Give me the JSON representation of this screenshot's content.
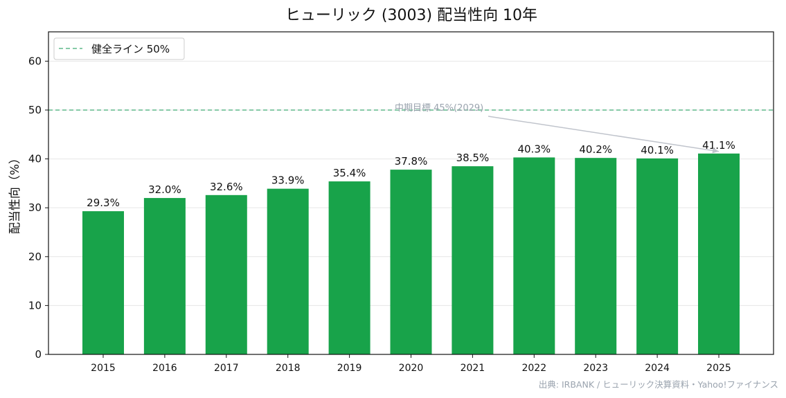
{
  "chart_data": {
    "type": "bar",
    "title": "ヒューリック (3003) 配当性向 10年",
    "xlabel": "",
    "ylabel": "配当性向（%）",
    "categories": [
      "2015",
      "2016",
      "2017",
      "2018",
      "2019",
      "2020",
      "2021",
      "2022",
      "2023",
      "2024",
      "2025"
    ],
    "values": [
      29.3,
      32.0,
      32.6,
      33.9,
      35.4,
      37.8,
      38.5,
      40.3,
      40.2,
      40.1,
      41.1
    ],
    "data_labels": [
      "29.3%",
      "32.0%",
      "32.6%",
      "33.9%",
      "35.4%",
      "37.8%",
      "38.5%",
      "40.3%",
      "40.2%",
      "40.1%",
      "41.1%"
    ],
    "ylim": [
      0,
      66
    ],
    "yticks": [
      0,
      10,
      20,
      30,
      40,
      50,
      60
    ],
    "grid": true,
    "bar_color": "#18a34a",
    "reference_line": {
      "value": 50,
      "label": "健全ライン 50%",
      "color": "#5fb98a",
      "style": "dashed"
    },
    "legend": {
      "position": "top-left",
      "entries": [
        "健全ライン 50%"
      ]
    },
    "annotation": {
      "text": "中期目標 45%(2029)",
      "text_y": 50,
      "arrow_to_category": "2025",
      "arrow_to_value": 41.1
    },
    "source": "出典: IRBANK / ヒューリック決算資料・Yahoo!ファイナンス"
  }
}
